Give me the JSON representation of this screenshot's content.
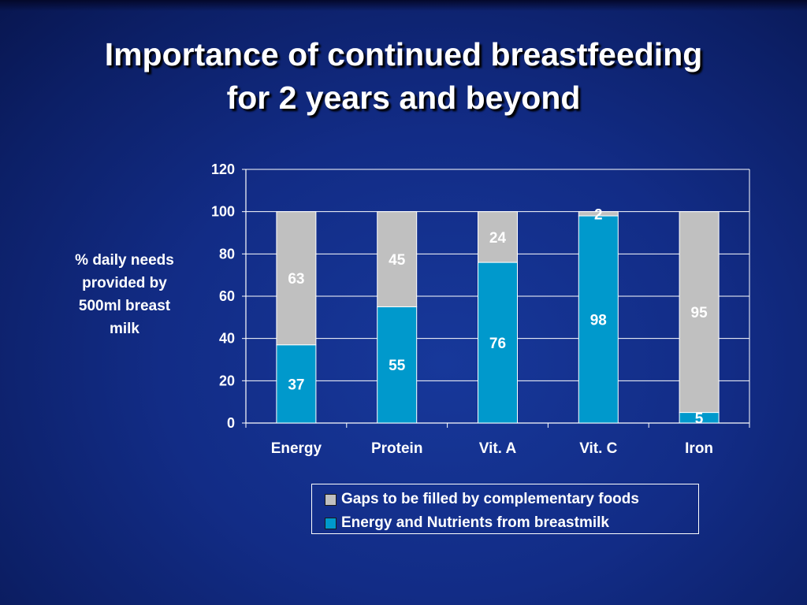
{
  "slide": {
    "title_line1": "Importance of continued breastfeeding",
    "title_line2": "for 2 years and beyond"
  },
  "chart_data": {
    "type": "bar",
    "stacked": true,
    "ylabel": "%  daily needs\nprovided by\n500ml breast\nmilk",
    "xlabel": "",
    "ylim": [
      0,
      120
    ],
    "yticks": [
      0,
      20,
      40,
      60,
      80,
      100,
      120
    ],
    "grid": true,
    "legend_position": "bottom-right",
    "categories": [
      "Energy",
      "Protein",
      "Vit. A",
      "Vit. C",
      "Iron"
    ],
    "series": [
      {
        "name": "Energy and Nutrients from breastmilk",
        "values": [
          37,
          55,
          76,
          98,
          5
        ],
        "color": "#0099cc"
      },
      {
        "name": "Gaps to be filled by complementary foods",
        "values": [
          63,
          45,
          24,
          2,
          95
        ],
        "color": "#c0c0c0"
      }
    ],
    "legend_order": [
      1,
      0
    ]
  }
}
